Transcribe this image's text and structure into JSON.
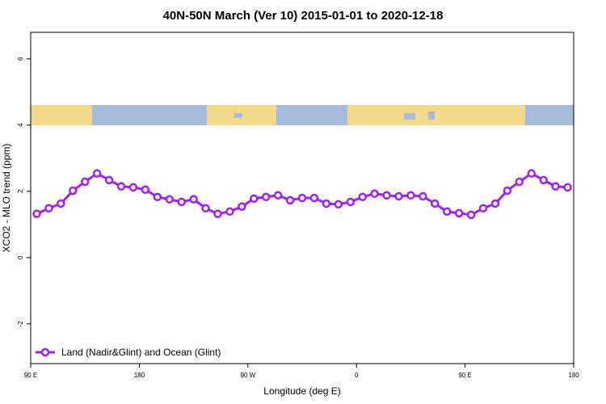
{
  "chart_data": {
    "type": "line",
    "title": "40N-50N March (Ver 10)   2015-01-01 to 2020-12-18",
    "x_label": "Longitude (deg E)",
    "y_label": "XCO2 - MLO trend (ppm)",
    "x": [
      95,
      105,
      115,
      125,
      135,
      145,
      155,
      165,
      175,
      185,
      195,
      205,
      215,
      225,
      235,
      245,
      255,
      265,
      275,
      285,
      295,
      305,
      315,
      325,
      335,
      345,
      355,
      365,
      375,
      385,
      395,
      405,
      415,
      425,
      435,
      445,
      455,
      465,
      475,
      485,
      495,
      505,
      515,
      525,
      535
    ],
    "series": [
      {
        "name": "Land (Nadir&Glint) and Ocean (Glint)",
        "color": "#a020f0",
        "values": [
          1.32,
          1.49,
          1.63,
          2.02,
          2.29,
          2.54,
          2.34,
          2.15,
          2.12,
          2.05,
          1.83,
          1.76,
          1.68,
          1.76,
          1.49,
          1.32,
          1.39,
          1.54,
          1.78,
          1.83,
          1.88,
          1.73,
          1.8,
          1.8,
          1.63,
          1.61,
          1.68,
          1.83,
          1.93,
          1.88,
          1.85,
          1.88,
          1.85,
          1.63,
          1.39,
          1.34,
          1.29,
          1.49,
          1.63,
          2.02,
          2.29,
          2.54,
          2.34,
          2.15,
          2.12
        ]
      }
    ],
    "xlim": [
      90,
      540
    ],
    "xticks": [
      {
        "value": 90,
        "label": "90 E"
      },
      {
        "value": 180,
        "label": "180"
      },
      {
        "value": 270,
        "label": "90 W"
      },
      {
        "value": 360,
        "label": "0"
      },
      {
        "value": 450,
        "label": "90 E"
      },
      {
        "value": 540,
        "label": "180"
      }
    ],
    "ylim": [
      -3.2,
      6.8
    ],
    "yticks": [
      -2,
      0,
      2,
      4,
      6
    ],
    "legend": "bottom-left"
  }
}
